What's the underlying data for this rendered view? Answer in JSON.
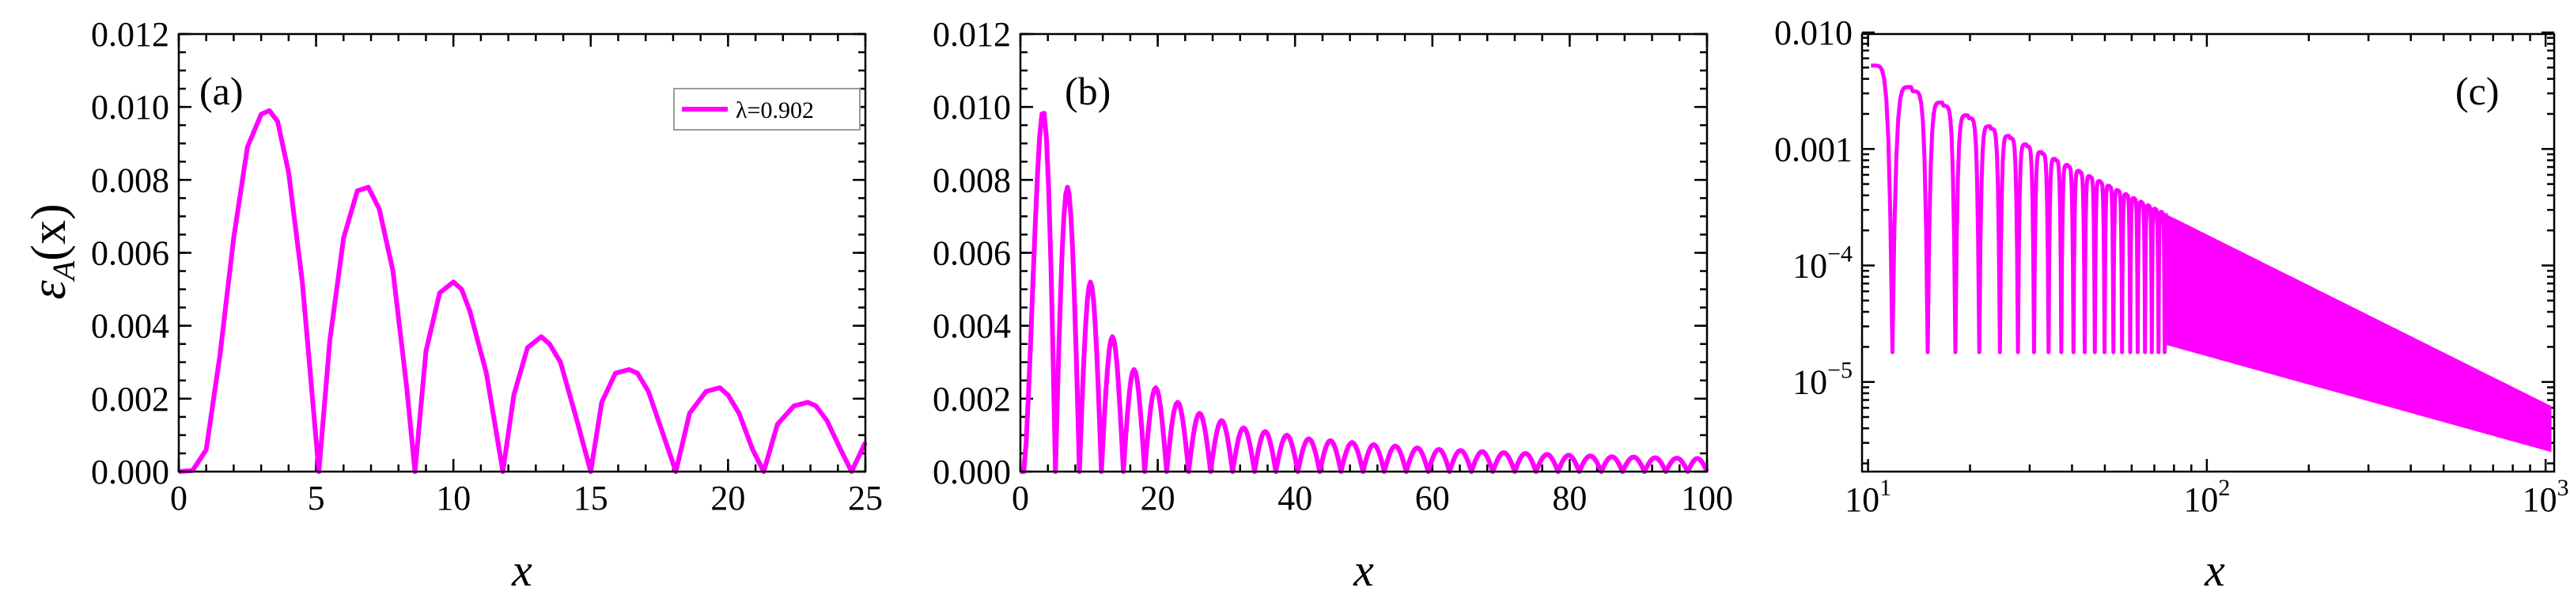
{
  "chart_data": [
    {
      "type": "line",
      "panel_label": "(a)",
      "xlabel": "x",
      "ylabel_main": "ε",
      "ylabel_sub": "A",
      "ylabel_arg": "(x)",
      "xlim": [
        0,
        25
      ],
      "ylim": [
        0,
        0.012
      ],
      "x_ticks": [
        0,
        5,
        10,
        15,
        20,
        25
      ],
      "x_tick_labels": [
        "0",
        "5",
        "10",
        "15",
        "20",
        "25"
      ],
      "y_ticks": [
        0,
        0.002,
        0.004,
        0.006,
        0.008,
        0.01,
        0.012
      ],
      "y_tick_labels": [
        "0.000",
        "0.002",
        "0.004",
        "0.006",
        "0.008",
        "0.010",
        "0.012"
      ],
      "legend": {
        "entry": "λ=0.902",
        "placement": "top-right"
      },
      "color": "#ff00ff",
      "series": [
        {
          "name": "λ=0.902",
          "x": [
            0,
            0.5,
            1.0,
            1.5,
            2.0,
            2.5,
            3.0,
            3.3,
            3.6,
            4.0,
            4.5,
            5.1,
            5.5,
            6.0,
            6.5,
            6.9,
            7.3,
            7.8,
            8.3,
            8.6,
            9.0,
            9.5,
            10.0,
            10.3,
            10.6,
            11.2,
            11.8,
            12.2,
            12.7,
            13.2,
            13.5,
            13.9,
            14.5,
            15.0,
            15.4,
            15.9,
            16.4,
            16.7,
            17.1,
            17.6,
            18.1,
            18.6,
            19.2,
            19.7,
            20.0,
            20.4,
            20.9,
            21.3,
            21.8,
            22.4,
            22.9,
            23.2,
            23.6,
            24.1,
            24.5,
            25.0
          ],
          "y": [
            0,
            3e-05,
            0.0006,
            0.0032,
            0.0064,
            0.0089,
            0.0098,
            0.0099,
            0.0096,
            0.0082,
            0.0052,
            0,
            0.0036,
            0.0064,
            0.0077,
            0.0078,
            0.0072,
            0.0055,
            0.0023,
            0,
            0.0033,
            0.0049,
            0.0052,
            0.005,
            0.0044,
            0.0027,
            0,
            0.0021,
            0.0034,
            0.0037,
            0.0035,
            0.003,
            0.0014,
            0,
            0.0019,
            0.0027,
            0.0028,
            0.0027,
            0.0022,
            0.0011,
            0,
            0.0016,
            0.0022,
            0.0023,
            0.0021,
            0.0016,
            0.0006,
            0,
            0.0013,
            0.0018,
            0.0019,
            0.0018,
            0.0014,
            0.0006,
            0,
            0.0008
          ]
        }
      ]
    },
    {
      "type": "line",
      "panel_label": "(b)",
      "xlabel": "x",
      "xlim": [
        0,
        100
      ],
      "ylim": [
        0,
        0.012
      ],
      "x_ticks": [
        0,
        20,
        40,
        60,
        80,
        100
      ],
      "x_tick_labels": [
        "0",
        "20",
        "40",
        "60",
        "80",
        "100"
      ],
      "y_ticks": [
        0,
        0.002,
        0.004,
        0.006,
        0.008,
        0.01,
        0.012
      ],
      "y_tick_labels": [
        "0.000",
        "0.002",
        "0.004",
        "0.006",
        "0.008",
        "0.010",
        "0.012"
      ],
      "color": "#ff00ff",
      "zeros": [
        5.1,
        8.6,
        11.8,
        15.0,
        18.1,
        21.3,
        24.5,
        27.7,
        30.9,
        34.1,
        37.2,
        40.4,
        43.6,
        46.7,
        49.9,
        53.0,
        56.2,
        59.4,
        62.5,
        65.7,
        68.8,
        72.0,
        75.1,
        78.3,
        81.4,
        84.6,
        87.7,
        90.9,
        94.0,
        97.2,
        100.3
      ],
      "peaks": [
        0.0099,
        0.0078,
        0.0052,
        0.0037,
        0.0028,
        0.0023,
        0.0019,
        0.0016,
        0.0014,
        0.0012,
        0.0011,
        0.001,
        0.0009,
        0.00085,
        0.0008,
        0.00074,
        0.0007,
        0.00065,
        0.00061,
        0.00058,
        0.00055,
        0.00052,
        0.0005,
        0.00047,
        0.00045,
        0.00043,
        0.00041,
        0.0004,
        0.00038,
        0.00037,
        0.00036
      ]
    },
    {
      "type": "line",
      "panel_label": "(c)",
      "xlabel": "x",
      "x_scale": "log",
      "y_scale": "log",
      "xlim": [
        9.6,
        1060
      ],
      "ylim": [
        1.7e-06,
        0.0097
      ],
      "x_ticks": [
        10,
        100,
        1000
      ],
      "x_tick_labels": [
        {
          "base": "10",
          "exp": "1"
        },
        {
          "base": "10",
          "exp": "2"
        },
        {
          "base": "10",
          "exp": "3"
        }
      ],
      "y_ticks": [
        1e-05,
        0.0001,
        0.001,
        0.01
      ],
      "y_tick_labels": [
        {
          "base": "10",
          "exp": "−5"
        },
        {
          "base": "10",
          "exp": "−4"
        },
        {
          "text": "0.001"
        },
        {
          "text": "0.010"
        }
      ],
      "color": "#ff00ff",
      "envelope_upper": {
        "x": [
          10,
          1040
        ],
        "y": [
          0.0052,
          6.2e-06
        ]
      },
      "envelope_lower": {
        "x": [
          75,
          1040
        ],
        "y": [
          2.1e-05,
          2.5e-06
        ]
      },
      "dip_floor": 1.8e-05,
      "first_peak": {
        "x": 10.2,
        "y": 0.0052
      },
      "zeros": [
        11.8,
        15.0,
        18.1,
        21.3,
        24.5,
        27.7,
        30.9,
        34.1,
        37.2,
        40.4,
        43.6,
        46.7,
        49.9,
        53.0,
        56.2,
        59.4,
        62.5,
        65.7,
        68.8,
        72.0,
        75.1
      ]
    }
  ]
}
